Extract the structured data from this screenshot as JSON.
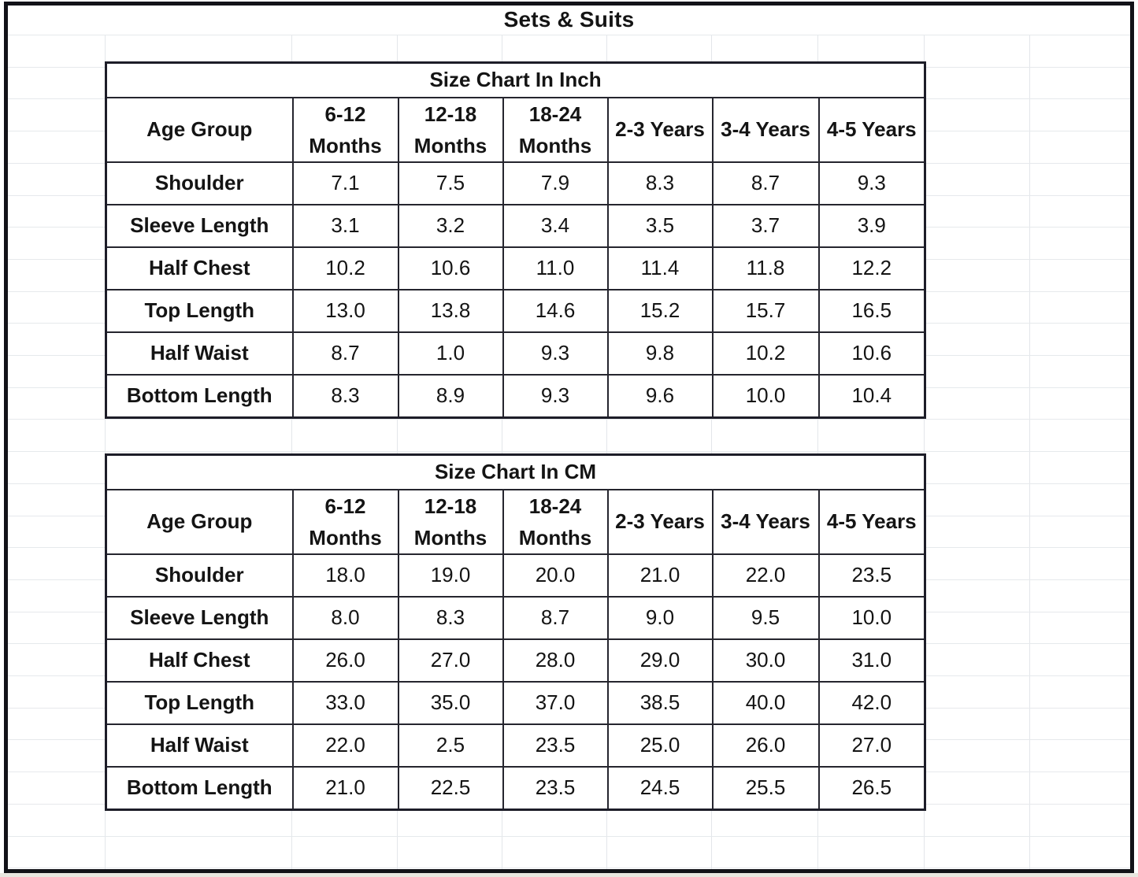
{
  "page_title": "Sets & Suits",
  "tables": [
    {
      "title": "Size Chart In Inch",
      "header": [
        [
          "Age Group"
        ],
        [
          "6-12",
          "Months"
        ],
        [
          "12-18",
          "Months"
        ],
        [
          "18-24",
          "Months"
        ],
        [
          "2-3 Years"
        ],
        [
          "3-4 Years"
        ],
        [
          "4-5 Years"
        ]
      ],
      "rows": [
        {
          "label": "Shoulder",
          "values": [
            "7.1",
            "7.5",
            "7.9",
            "8.3",
            "8.7",
            "9.3"
          ]
        },
        {
          "label": "Sleeve Length",
          "values": [
            "3.1",
            "3.2",
            "3.4",
            "3.5",
            "3.7",
            "3.9"
          ]
        },
        {
          "label": "Half Chest",
          "values": [
            "10.2",
            "10.6",
            "11.0",
            "11.4",
            "11.8",
            "12.2"
          ]
        },
        {
          "label": "Top Length",
          "values": [
            "13.0",
            "13.8",
            "14.6",
            "15.2",
            "15.7",
            "16.5"
          ]
        },
        {
          "label": "Half Waist",
          "values": [
            "8.7",
            "1.0",
            "9.3",
            "9.8",
            "10.2",
            "10.6"
          ]
        },
        {
          "label": "Bottom Length",
          "values": [
            "8.3",
            "8.9",
            "9.3",
            "9.6",
            "10.0",
            "10.4"
          ]
        }
      ]
    },
    {
      "title": "Size Chart In CM",
      "header": [
        [
          "Age Group"
        ],
        [
          "6-12",
          "Months"
        ],
        [
          "12-18",
          "Months"
        ],
        [
          "18-24",
          "Months"
        ],
        [
          "2-3 Years"
        ],
        [
          "3-4 Years"
        ],
        [
          "4-5 Years"
        ]
      ],
      "rows": [
        {
          "label": "Shoulder",
          "values": [
            "18.0",
            "19.0",
            "20.0",
            "21.0",
            "22.0",
            "23.5"
          ]
        },
        {
          "label": "Sleeve Length",
          "values": [
            "8.0",
            "8.3",
            "8.7",
            "9.0",
            "9.5",
            "10.0"
          ]
        },
        {
          "label": "Half Chest",
          "values": [
            "26.0",
            "27.0",
            "28.0",
            "29.0",
            "30.0",
            "31.0"
          ]
        },
        {
          "label": "Top Length",
          "values": [
            "33.0",
            "35.0",
            "37.0",
            "38.5",
            "40.0",
            "42.0"
          ]
        },
        {
          "label": "Half Waist",
          "values": [
            "22.0",
            "2.5",
            "23.5",
            "25.0",
            "26.0",
            "27.0"
          ]
        },
        {
          "label": "Bottom Length",
          "values": [
            "21.0",
            "22.5",
            "23.5",
            "24.5",
            "25.5",
            "26.5"
          ]
        }
      ]
    }
  ],
  "chart_data": [
    {
      "type": "table",
      "title": "Size Chart In Inch",
      "categories": [
        "6-12 Months",
        "12-18 Months",
        "18-24 Months",
        "2-3 Years",
        "3-4 Years",
        "4-5 Years"
      ],
      "series": [
        {
          "name": "Shoulder",
          "values": [
            7.1,
            7.5,
            7.9,
            8.3,
            8.7,
            9.3
          ]
        },
        {
          "name": "Sleeve Length",
          "values": [
            3.1,
            3.2,
            3.4,
            3.5,
            3.7,
            3.9
          ]
        },
        {
          "name": "Half Chest",
          "values": [
            10.2,
            10.6,
            11.0,
            11.4,
            11.8,
            12.2
          ]
        },
        {
          "name": "Top Length",
          "values": [
            13.0,
            13.8,
            14.6,
            15.2,
            15.7,
            16.5
          ]
        },
        {
          "name": "Half Waist",
          "values": [
            8.7,
            1.0,
            9.3,
            9.8,
            10.2,
            10.6
          ]
        },
        {
          "name": "Bottom Length",
          "values": [
            8.3,
            8.9,
            9.3,
            9.6,
            10.0,
            10.4
          ]
        }
      ]
    },
    {
      "type": "table",
      "title": "Size Chart In CM",
      "categories": [
        "6-12 Months",
        "12-18 Months",
        "18-24 Months",
        "2-3 Years",
        "3-4 Years",
        "4-5 Years"
      ],
      "series": [
        {
          "name": "Shoulder",
          "values": [
            18.0,
            19.0,
            20.0,
            21.0,
            22.0,
            23.5
          ]
        },
        {
          "name": "Sleeve Length",
          "values": [
            8.0,
            8.3,
            8.7,
            9.0,
            9.5,
            10.0
          ]
        },
        {
          "name": "Half Chest",
          "values": [
            26.0,
            27.0,
            28.0,
            29.0,
            30.0,
            31.0
          ]
        },
        {
          "name": "Top Length",
          "values": [
            33.0,
            35.0,
            37.0,
            38.5,
            40.0,
            42.0
          ]
        },
        {
          "name": "Half Waist",
          "values": [
            22.0,
            2.5,
            23.5,
            25.0,
            26.0,
            27.0
          ]
        },
        {
          "name": "Bottom Length",
          "values": [
            21.0,
            22.5,
            23.5,
            24.5,
            25.5,
            26.5
          ]
        }
      ]
    }
  ]
}
